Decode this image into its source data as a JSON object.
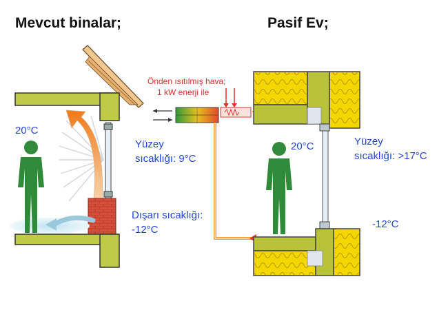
{
  "titles": {
    "left": "Mevcut binalar;",
    "right": "Pasif Ev;"
  },
  "left_panel": {
    "indoor_temp": "20°C",
    "surface_label": "Yüzey",
    "surface_value": "sıcaklığı: 9°C",
    "outdoor_label": "Dışarı sıcaklığı:",
    "outdoor_value": "-12°C"
  },
  "ventilation": {
    "line1": "Önden ısıtılmış hava;",
    "line2": "1 kW enerji ile"
  },
  "right_panel": {
    "indoor_temp": "20°C",
    "surface_label": "Yüzey",
    "surface_value": "sıcaklığı: >17°C",
    "outdoor_temp": "-12°C"
  },
  "colors": {
    "label_blue": "#2347d6",
    "note_red": "#e0302a",
    "insulation_yellow": "#f5d700",
    "wall_olive": "#b8c23a",
    "warm_orange": "#f29a2e",
    "person_green": "#2f8a3a",
    "brick_red": "#d8503a"
  }
}
